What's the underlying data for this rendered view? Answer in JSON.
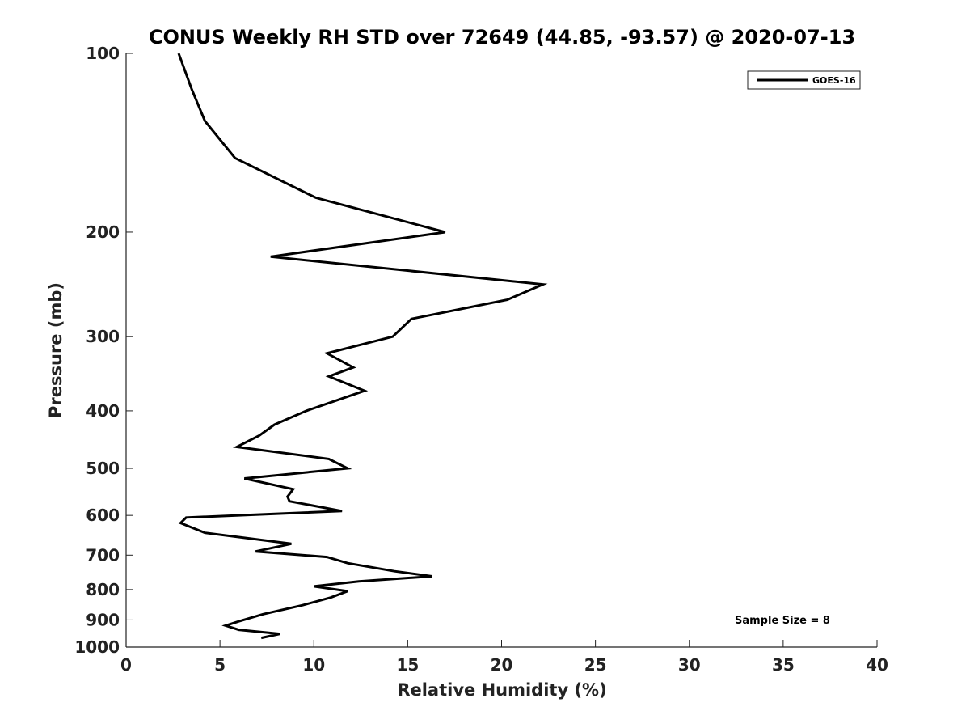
{
  "chart_data": {
    "type": "line",
    "title": "CONUS Weekly RH STD over 72649 (44.85, -93.57) @ 2020-07-13",
    "xlabel": "Relative Humidity (%)",
    "ylabel": "Pressure (mb)",
    "xlim": [
      0,
      40
    ],
    "ylim": [
      100,
      1000
    ],
    "yscale": "log",
    "y_reversed": true,
    "xticks": [
      0,
      5,
      10,
      15,
      20,
      25,
      30,
      35,
      40
    ],
    "yticks": [
      100,
      200,
      300,
      400,
      500,
      600,
      700,
      800,
      900,
      1000
    ],
    "grid": false,
    "legend_position": "top-right",
    "series": [
      {
        "name": "GOES-16",
        "color": "#000000",
        "x": [
          2.8,
          3.5,
          4.2,
          5.8,
          10.1,
          17.0,
          7.7,
          22.2,
          20.3,
          15.2,
          14.2,
          10.7,
          12.1,
          10.8,
          12.7,
          9.6,
          7.9,
          7.1,
          5.9,
          10.8,
          11.8,
          6.3,
          8.9,
          8.6,
          8.7,
          11.5,
          3.2,
          2.9,
          4.2,
          8.8,
          6.9,
          10.7,
          11.8,
          14.3,
          16.3,
          12.4,
          10.0,
          11.8,
          10.9,
          9.4,
          7.3,
          6.0,
          5.3,
          6.0,
          8.2,
          7.2
        ],
        "y": [
          100,
          115,
          130,
          150,
          175,
          200,
          220,
          245,
          260,
          280,
          300,
          320,
          338,
          350,
          370,
          400,
          422,
          440,
          460,
          482,
          500,
          520,
          542,
          558,
          568,
          590,
          605,
          618,
          642,
          670,
          690,
          705,
          722,
          745,
          760,
          775,
          790,
          805,
          825,
          850,
          880,
          905,
          920,
          935,
          950,
          965
        ]
      }
    ],
    "annotations": [
      "Sample Size = 8"
    ]
  }
}
